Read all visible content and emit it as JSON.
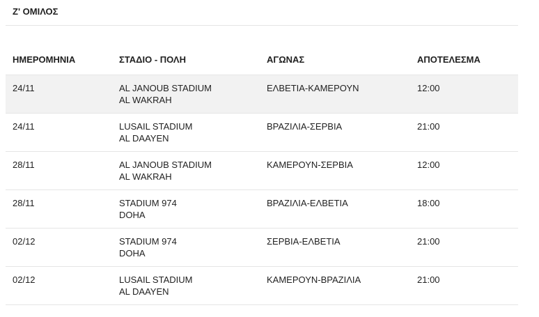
{
  "group": {
    "title": "Ζ' ΟΜΙΛΟΣ"
  },
  "table": {
    "headers": {
      "date": "ΗΜΕΡΟΜΗΝΙΑ",
      "venue": "ΣΤΑΔΙΟ - ΠΟΛΗ",
      "match": "ΑΓΩΝΑΣ",
      "result": "ΑΠΟΤΕΛΕΣΜΑ"
    },
    "rows": [
      {
        "date": "24/11",
        "stadium": "AL JANOUB STADIUM",
        "city": "AL WAKRAH",
        "match": "ΕΛΒΕΤΙΑ-ΚΑΜΕΡΟΥΝ",
        "result": "12:00"
      },
      {
        "date": "24/11",
        "stadium": "LUSAIL STADIUM",
        "city": "AL DAAYEN",
        "match": "ΒΡΑΖΙΛΙΑ-ΣΕΡΒΙΑ",
        "result": "21:00"
      },
      {
        "date": "28/11",
        "stadium": "AL JANOUB STADIUM",
        "city": "AL WAKRAH",
        "match": "ΚΑΜΕΡΟΥΝ-ΣΕΡΒΙΑ",
        "result": "12:00"
      },
      {
        "date": "28/11",
        "stadium": "STADIUM 974",
        "city": "DOHA",
        "match": "ΒΡΑΖΙΛΙΑ-ΕΛΒΕΤΙΑ",
        "result": "18:00"
      },
      {
        "date": "02/12",
        "stadium": "STADIUM 974",
        "city": "DOHA",
        "match": "ΣΕΡΒΙΑ-ΕΛΒΕΤΙΑ",
        "result": "21:00"
      },
      {
        "date": "02/12",
        "stadium": "LUSAIL STADIUM",
        "city": "AL DAAYEN",
        "match": "ΚΑΜΕΡΟΥΝ-ΒΡΑΖΙΛΙΑ",
        "result": "21:00"
      }
    ]
  }
}
